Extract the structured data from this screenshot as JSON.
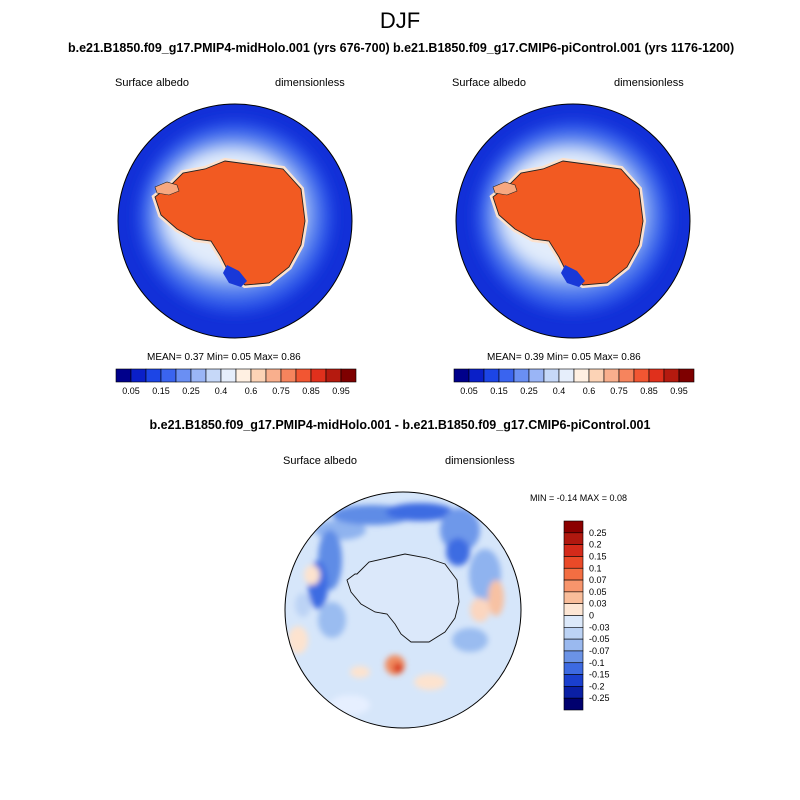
{
  "main_title": "DJF",
  "panels": [
    {
      "id": "midholo",
      "title": "b.e21.B1850.f09_g17.PMIP4-midHolo.001 (yrs 676-700)",
      "var_label": "Surface albedo",
      "units_label": "dimensionless",
      "stats": {
        "mean_label": "MEAN=",
        "mean": "0.37",
        "min_label": "Min=",
        "min": "0.05",
        "max_label": "Max=",
        "max": "0.86"
      }
    },
    {
      "id": "picontrol",
      "title": "b.e21.B1850.f09_g17.CMIP6-piControl.001 (yrs 1176-1200)",
      "var_label": "Surface albedo",
      "units_label": "dimensionless",
      "stats": {
        "mean_label": "MEAN=",
        "mean": "0.39",
        "min_label": "Min=",
        "min": "0.05",
        "max_label": "Max=",
        "max": "0.86"
      }
    }
  ],
  "diff_panel": {
    "title": "b.e21.B1850.f09_g17.PMIP4-midHolo.001 - b.e21.B1850.f09_g17.CMIP6-piControl.001",
    "var_label": "Surface albedo",
    "units_label": "dimensionless",
    "stats_text": "MIN =  -0.14 MAX =   0.08"
  },
  "chart_data": [
    {
      "type": "heatmap",
      "projection": "south-polar-stereographic",
      "title": "b.e21.B1850.f09_g17.PMIP4-midHolo.001 (yrs 676-700)",
      "variable": "Surface albedo",
      "units": "dimensionless",
      "mean": 0.37,
      "min": 0.05,
      "max": 0.86,
      "colorbar": {
        "orientation": "horizontal",
        "levels": [
          0.05,
          0.1,
          0.15,
          0.2,
          0.25,
          0.3,
          0.4,
          0.5,
          0.6,
          0.7,
          0.75,
          0.8,
          0.85,
          0.9,
          0.95
        ],
        "tick_labels": [
          "0.05",
          "0.15",
          "0.25",
          "0.4",
          "0.6",
          "0.75",
          "0.85",
          "0.95"
        ],
        "colors": [
          "#00008b",
          "#0a1fc8",
          "#1c45e6",
          "#3a64ef",
          "#6a8ff3",
          "#9ab5f6",
          "#c6d8f8",
          "#e6eefb",
          "#fff0e2",
          "#fcd3b6",
          "#f9af8d",
          "#f6845d",
          "#f25632",
          "#e0301c",
          "#b51a0f",
          "#7e0000"
        ]
      }
    },
    {
      "type": "heatmap",
      "projection": "south-polar-stereographic",
      "title": "b.e21.B1850.f09_g17.CMIP6-piControl.001 (yrs 1176-1200)",
      "variable": "Surface albedo",
      "units": "dimensionless",
      "mean": 0.39,
      "min": 0.05,
      "max": 0.86,
      "colorbar": {
        "orientation": "horizontal",
        "levels": [
          0.05,
          0.1,
          0.15,
          0.2,
          0.25,
          0.3,
          0.4,
          0.5,
          0.6,
          0.7,
          0.75,
          0.8,
          0.85,
          0.9,
          0.95
        ],
        "tick_labels": [
          "0.05",
          "0.15",
          "0.25",
          "0.4",
          "0.6",
          "0.75",
          "0.85",
          "0.95"
        ],
        "colors": [
          "#00008b",
          "#0a1fc8",
          "#1c45e6",
          "#3a64ef",
          "#6a8ff3",
          "#9ab5f6",
          "#c6d8f8",
          "#e6eefb",
          "#fff0e2",
          "#fcd3b6",
          "#f9af8d",
          "#f6845d",
          "#f25632",
          "#e0301c",
          "#b51a0f",
          "#7e0000"
        ]
      }
    },
    {
      "type": "heatmap",
      "projection": "south-polar-stereographic",
      "title": "b.e21.B1850.f09_g17.PMIP4-midHolo.001 - b.e21.B1850.f09_g17.CMIP6-piControl.001",
      "variable": "Surface albedo",
      "units": "dimensionless",
      "min": -0.14,
      "max": 0.08,
      "colorbar": {
        "orientation": "vertical",
        "levels": [
          -0.25,
          -0.2,
          -0.15,
          -0.1,
          -0.07,
          -0.05,
          -0.03,
          0,
          0.03,
          0.05,
          0.07,
          0.1,
          0.15,
          0.2,
          0.25
        ],
        "tick_labels": [
          "0.25",
          "0.2",
          "0.15",
          "0.1",
          "0.07",
          "0.05",
          "0.03",
          "0",
          "-0.03",
          "-0.05",
          "-0.07",
          "-0.1",
          "-0.15",
          "-0.2",
          "-0.25"
        ],
        "colors_top_to_bottom": [
          "#8b0000",
          "#b0180f",
          "#d42a1a",
          "#ea4a28",
          "#f36e42",
          "#f7956c",
          "#f9bd9a",
          "#fde6d4",
          "#dce9fa",
          "#bcd3f5",
          "#9ab9ef",
          "#6b93e6",
          "#3d6ae1",
          "#1a3fce",
          "#0a1fa5",
          "#00006e"
        ]
      }
    }
  ]
}
